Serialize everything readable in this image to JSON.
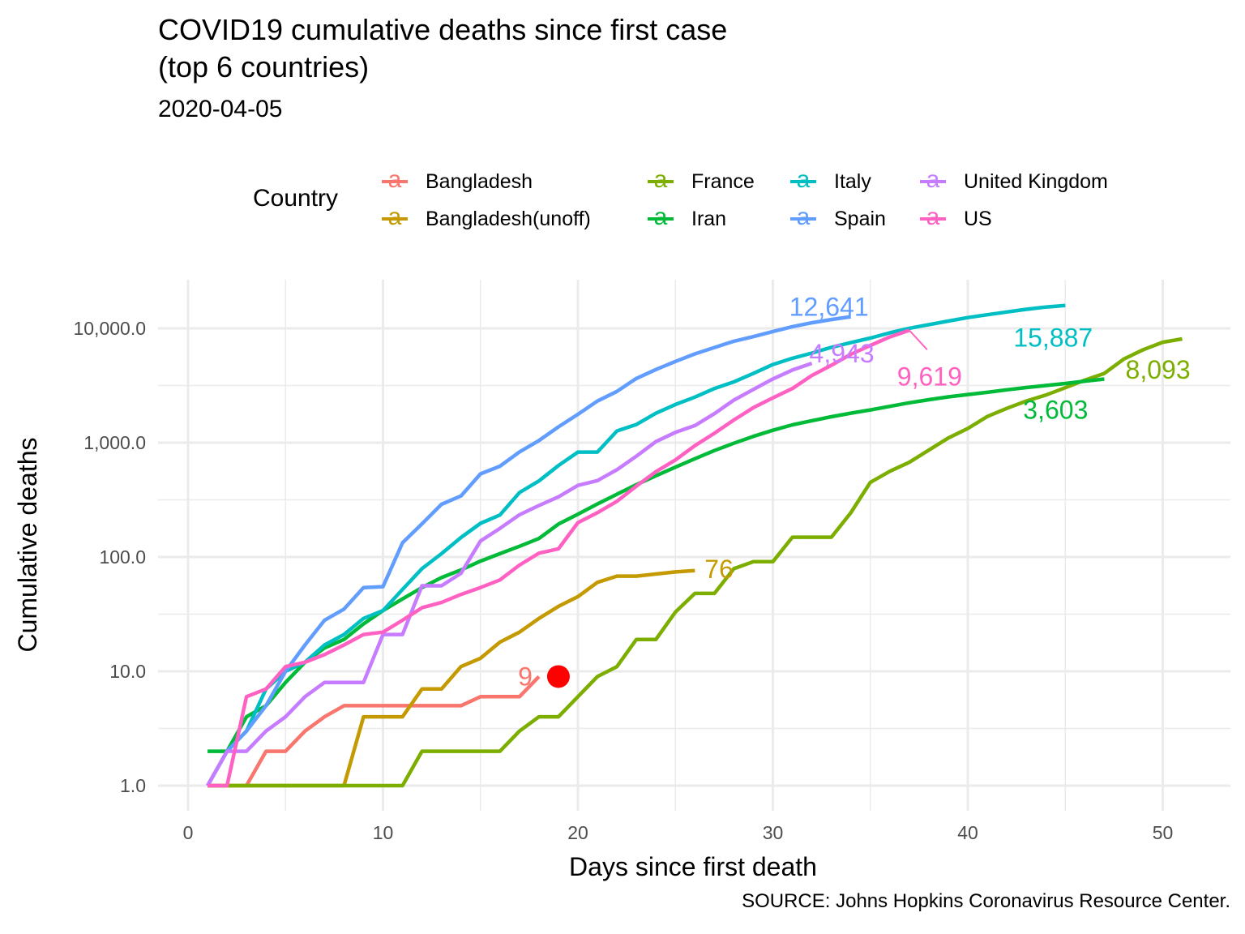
{
  "chart_data": {
    "type": "line",
    "title": "COVID19 cumulative deaths since first case\n(top 6 countries)",
    "subtitle": "2020-04-05",
    "caption": "SOURCE: Johns Hopkins Coronavirus Resource Center.",
    "xlabel": "Days since first death",
    "ylabel": "Cumulative deaths",
    "xlim": [
      0,
      53
    ],
    "ylim": [
      1,
      20000
    ],
    "y_scale": "log10",
    "x_ticks": [
      0,
      10,
      20,
      30,
      40,
      50
    ],
    "x_tick_labels": [
      "0",
      "10",
      "20",
      "30",
      "40",
      "50"
    ],
    "y_ticks": [
      1,
      10,
      100,
      1000,
      10000
    ],
    "y_tick_labels": [
      "1.0",
      "10.0",
      "100.0",
      "1,000.0",
      "10,000.0"
    ],
    "grid": true,
    "legend": {
      "title": "Country",
      "position": "top",
      "columns": [
        [
          "Bangladesh",
          "Bangladesh(unoff)"
        ],
        [
          "France",
          "Iran"
        ],
        [
          "Italy",
          "Spain"
        ],
        [
          "United Kingdom",
          "US"
        ]
      ]
    },
    "highlight_point": {
      "x": 19,
      "y": 9,
      "color": "#ff0000"
    },
    "series": [
      {
        "name": "Bangladesh",
        "color": "#F8766D",
        "x": [
          1,
          2,
          3,
          4,
          5,
          6,
          7,
          8,
          9,
          10,
          11,
          12,
          13,
          14,
          15,
          16,
          17,
          18
        ],
        "y": [
          1,
          1,
          1,
          2,
          2,
          3,
          4,
          5,
          5,
          5,
          5,
          5,
          5,
          5,
          6,
          6,
          6,
          9
        ],
        "end_label": "9"
      },
      {
        "name": "Bangladesh(unoff)",
        "color": "#C49A00",
        "x": [
          1,
          2,
          3,
          4,
          5,
          6,
          7,
          8,
          9,
          10,
          11,
          12,
          13,
          14,
          15,
          16,
          17,
          18,
          19,
          20,
          21,
          22,
          23,
          24,
          25,
          26
        ],
        "y": [
          1,
          1,
          1,
          1,
          1,
          1,
          1,
          1,
          4,
          4,
          4,
          7,
          7,
          11,
          13,
          18,
          22,
          29,
          37,
          45,
          60,
          68,
          68,
          71,
          74,
          76
        ],
        "end_label": "76"
      },
      {
        "name": "France",
        "color": "#7CAE00",
        "x": [
          1,
          2,
          3,
          4,
          5,
          6,
          7,
          8,
          9,
          10,
          11,
          12,
          13,
          14,
          15,
          16,
          17,
          18,
          19,
          20,
          21,
          22,
          23,
          24,
          25,
          26,
          27,
          28,
          29,
          30,
          31,
          32,
          33,
          34,
          35,
          36,
          37,
          38,
          39,
          40,
          41,
          42,
          43,
          44,
          45,
          46,
          47,
          48,
          49,
          50,
          51
        ],
        "y": [
          1,
          1,
          1,
          1,
          1,
          1,
          1,
          1,
          1,
          1,
          1,
          2,
          2,
          2,
          2,
          2,
          3,
          4,
          4,
          6,
          9,
          11,
          19,
          19,
          33,
          48,
          48,
          79,
          91,
          91,
          149,
          149,
          149,
          244,
          450,
          562,
          674,
          860,
          1100,
          1331,
          1696,
          1995,
          2314,
          2606,
          3024,
          3523,
          4032,
          5387,
          6507,
          7560,
          8093
        ],
        "end_label": "8,093"
      },
      {
        "name": "Iran",
        "color": "#00BA38",
        "x": [
          1,
          2,
          3,
          4,
          5,
          6,
          7,
          8,
          9,
          10,
          11,
          12,
          13,
          14,
          15,
          16,
          17,
          18,
          19,
          20,
          21,
          22,
          23,
          24,
          25,
          26,
          27,
          28,
          29,
          30,
          31,
          32,
          33,
          34,
          35,
          36,
          37,
          38,
          39,
          40,
          41,
          42,
          43,
          44,
          45,
          46,
          47
        ],
        "y": [
          2,
          2,
          4,
          5,
          8,
          12,
          16,
          19,
          26,
          34,
          43,
          54,
          66,
          77,
          92,
          107,
          124,
          145,
          194,
          237,
          291,
          354,
          429,
          514,
          611,
          724,
          853,
          988,
          1135,
          1284,
          1433,
          1556,
          1685,
          1812,
          1934,
          2077,
          2234,
          2378,
          2517,
          2640,
          2757,
          2898,
          3036,
          3160,
          3294,
          3452,
          3603
        ],
        "end_label": "3,603"
      },
      {
        "name": "Italy",
        "color": "#00BFC4",
        "x": [
          1,
          2,
          3,
          4,
          5,
          6,
          7,
          8,
          9,
          10,
          11,
          12,
          13,
          14,
          15,
          16,
          17,
          18,
          19,
          20,
          21,
          22,
          23,
          24,
          25,
          26,
          27,
          28,
          29,
          30,
          31,
          32,
          33,
          34,
          35,
          36,
          37,
          38,
          39,
          40,
          41,
          42,
          43,
          44,
          45
        ],
        "y": [
          1,
          2,
          3,
          7,
          10,
          12,
          17,
          21,
          29,
          34,
          52,
          79,
          107,
          148,
          197,
          233,
          366,
          463,
          631,
          827,
          827,
          1266,
          1441,
          1809,
          2158,
          2503,
          2978,
          3405,
          4032,
          4825,
          5476,
          6077,
          6820,
          7503,
          8215,
          9134,
          10023,
          10779,
          11591,
          12428,
          13155,
          13915,
          14681,
          15362,
          15887
        ],
        "end_label": "15,887"
      },
      {
        "name": "Spain",
        "color": "#619CFF",
        "x": [
          1,
          2,
          3,
          4,
          5,
          6,
          7,
          8,
          9,
          10,
          11,
          12,
          13,
          14,
          15,
          16,
          17,
          18,
          19,
          20,
          21,
          22,
          23,
          24,
          25,
          26,
          27,
          28,
          29,
          30,
          31,
          32,
          33,
          34
        ],
        "y": [
          1,
          2,
          3,
          5,
          10,
          17,
          28,
          35,
          54,
          55,
          133,
          195,
          289,
          342,
          533,
          623,
          830,
          1043,
          1375,
          1772,
          2311,
          2808,
          3647,
          4365,
          5138,
          5982,
          6803,
          7716,
          8464,
          9387,
          10348,
          11198,
          11947,
          12641
        ],
        "end_label": "12,641"
      },
      {
        "name": "United Kingdom",
        "color": "#C77CFF",
        "x": [
          1,
          2,
          3,
          4,
          5,
          6,
          7,
          8,
          9,
          10,
          11,
          12,
          13,
          14,
          15,
          16,
          17,
          18,
          19,
          20,
          21,
          22,
          23,
          24,
          25,
          26,
          27,
          28,
          29,
          30,
          31,
          32
        ],
        "y": [
          1,
          2,
          2,
          3,
          4,
          6,
          8,
          8,
          8,
          21,
          21,
          56,
          56,
          72,
          138,
          178,
          234,
          282,
          336,
          423,
          466,
          580,
          761,
          1021,
          1231,
          1411,
          1793,
          2357,
          2926,
          3611,
          4320,
          4943
        ],
        "end_label": "4,943"
      },
      {
        "name": "US",
        "color": "#FF61C3",
        "x": [
          1,
          2,
          3,
          4,
          5,
          6,
          7,
          8,
          9,
          10,
          11,
          12,
          13,
          14,
          15,
          16,
          17,
          18,
          19,
          20,
          21,
          22,
          23,
          24,
          25,
          26,
          27,
          28,
          29,
          30,
          31,
          32,
          33,
          34,
          35,
          36,
          37
        ],
        "y": [
          1,
          1,
          6,
          7,
          11,
          12,
          14,
          17,
          21,
          22,
          28,
          36,
          40,
          47,
          54,
          63,
          85,
          108,
          118,
          200,
          244,
          307,
          417,
          557,
          706,
          942,
          1209,
          1581,
          2026,
          2467,
          2978,
          3873,
          4757,
          5926,
          7087,
          8407,
          9619
        ],
        "end_label": "9,619"
      }
    ]
  }
}
